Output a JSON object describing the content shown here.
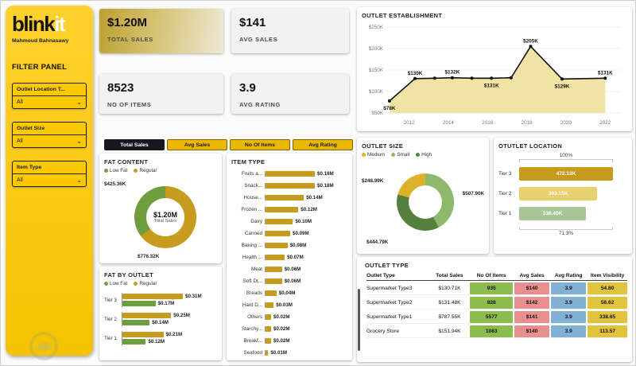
{
  "sidebar": {
    "logo_blink": "blink",
    "logo_it": "it",
    "author": "Mahmoud Bahnasawy",
    "filter_panel_title": "FILTER PANEL",
    "filters": [
      {
        "label": "Outlet Location T...",
        "value": "All"
      },
      {
        "label": "Outlet Size",
        "value": "All"
      },
      {
        "label": "Item Type",
        "value": "All"
      }
    ]
  },
  "kpis": [
    {
      "value": "$1.20M",
      "label": "TOTAL SALES"
    },
    {
      "value": "$141",
      "label": "AVG SALES"
    },
    {
      "value": "8523",
      "label": "NO OF ITEMS"
    },
    {
      "value": "3.9",
      "label": "AVG RATING"
    }
  ],
  "tabs": [
    {
      "label": "Total Sales",
      "active": true
    },
    {
      "label": "Avg Sales",
      "active": false
    },
    {
      "label": "No Of Items",
      "active": false
    },
    {
      "label": "Avg Rating",
      "active": false
    }
  ],
  "colors": {
    "brand_yellow": "#f7c600",
    "accent_gold": "#c79b1e",
    "accent_green": "#6f9e3f",
    "tab_active_bg": "#17171f"
  },
  "chart_data": [
    {
      "id": "outlet_establishment",
      "type": "area",
      "title": "OUTLET ESTABLISHMENT",
      "ylim": [
        50,
        250
      ],
      "yticks": [
        250,
        200,
        150,
        100,
        50
      ],
      "ytick_labels": [
        "$250K",
        "$200K",
        "$150K",
        "$100K",
        "$50K"
      ],
      "xticks": [
        2012,
        2014,
        2016,
        2018,
        2020,
        2022
      ],
      "fill_color": "#f0e0a0",
      "line_color": "#111111",
      "points": [
        {
          "x": 2011.0,
          "y": 78,
          "label": "$78K",
          "label_pos": "below"
        },
        {
          "x": 2012.3,
          "y": 130,
          "label": "$130K",
          "label_pos": "above"
        },
        {
          "x": 2013.3,
          "y": 131,
          "label": null,
          "label_pos": "above"
        },
        {
          "x": 2014.2,
          "y": 132,
          "label": "$132K",
          "label_pos": "above"
        },
        {
          "x": 2015.2,
          "y": 131,
          "label": null,
          "label_pos": "above"
        },
        {
          "x": 2016.2,
          "y": 131,
          "label": "$131K",
          "label_pos": "below"
        },
        {
          "x": 2017.2,
          "y": 132,
          "label": null,
          "label_pos": "above"
        },
        {
          "x": 2018.2,
          "y": 205,
          "label": "$205K",
          "label_pos": "above"
        },
        {
          "x": 2019.8,
          "y": 129,
          "label": "$129K",
          "label_pos": "below"
        },
        {
          "x": 2022.0,
          "y": 131,
          "label": "$131K",
          "label_pos": "above"
        }
      ]
    },
    {
      "id": "fat_content",
      "type": "pie",
      "title": "FAT CONTENT",
      "legend": [
        "Low Fat",
        "Regular"
      ],
      "slices": [
        {
          "name": "Regular",
          "value": 776.32,
          "label": "$776.32K",
          "color": "#c79b1e"
        },
        {
          "name": "Low Fat",
          "value": 425.36,
          "label": "$425.36K",
          "color": "#6f9e3f"
        }
      ],
      "center_value": "$1.20M",
      "center_label": "Total Sales"
    },
    {
      "id": "item_type",
      "type": "bar",
      "title": "ITEM TYPE",
      "bar_color": "#c79b1e",
      "categories": [
        "Fruits a...",
        "Snack...",
        "House...",
        "Frozen ...",
        "Dairy",
        "Canned",
        "Baking ...",
        "Health ...",
        "Meat",
        "Soft Dr...",
        "Breads",
        "Hard D...",
        "Others",
        "Starchy...",
        "Breakf...",
        "Seafood"
      ],
      "values": [
        0.18,
        0.18,
        0.14,
        0.12,
        0.1,
        0.09,
        0.08,
        0.07,
        0.06,
        0.06,
        0.04,
        0.03,
        0.02,
        0.02,
        0.02,
        0.01
      ],
      "labels": [
        "$0.18M",
        "$0.18M",
        "$0.14M",
        "$0.12M",
        "$0.10M",
        "$0.09M",
        "$0.08M",
        "$0.07M",
        "$0.06M",
        "$0.06M",
        "$0.04M",
        "$0.03M",
        "$0.02M",
        "$0.02M",
        "$0.02M",
        "$0.01M"
      ]
    },
    {
      "id": "fat_by_outlet",
      "type": "bar",
      "title": "FAT BY OUTLET",
      "legend": [
        "Low Fat",
        "Regular"
      ],
      "categories": [
        "Tier 3",
        "Tier 2",
        "Tier 1"
      ],
      "series": [
        {
          "name": "Regular",
          "color": "#c79b1e",
          "values": [
            0.31,
            0.25,
            0.21
          ],
          "labels": [
            "$0.31M",
            "$0.25M",
            "$0.21M"
          ]
        },
        {
          "name": "Low Fat",
          "color": "#6f9e3f",
          "values": [
            0.17,
            0.14,
            0.12
          ],
          "labels": [
            "$0.17M",
            "$0.14M",
            "$0.12M"
          ]
        }
      ]
    },
    {
      "id": "outlet_size",
      "type": "pie",
      "title": "OUTLET SIZE",
      "legend": [
        "Medium",
        "Small",
        "High"
      ],
      "slices": [
        {
          "name": "Small",
          "value": 507.9,
          "label": "$507.90K",
          "color": "#8fb96a"
        },
        {
          "name": "High",
          "value": 444.79,
          "label": "$444.79K",
          "color": "#55803c"
        },
        {
          "name": "Medium",
          "value": 248.99,
          "label": "$248.99K",
          "color": "#ddb228"
        }
      ]
    },
    {
      "id": "outlet_location",
      "type": "bar",
      "title": "OTUTLET LOCATION",
      "categories": [
        "Tier 3",
        "Tier 2",
        "Tier 1"
      ],
      "values": [
        472.13,
        393.15,
        336.4
      ],
      "labels": [
        "472.13K",
        "393.15K",
        "336.40K"
      ],
      "bar_colors": [
        "#c79b1e",
        "#e7d06f",
        "#a8c696"
      ],
      "annotations": [
        "100%",
        "71.3%"
      ]
    },
    {
      "id": "outlet_type",
      "type": "table",
      "title": "OUTLET TYPE",
      "columns": [
        "Outlet Type",
        "Total Sales",
        "No Of Items",
        "Avg Sales",
        "Avg Rating",
        "Item Visibility"
      ],
      "cell_colors": {
        "2": "#8cbb4e",
        "3": "#e89090",
        "4": "#82b1d6",
        "5": "#e2c33c"
      },
      "rows": [
        [
          "Supermarket Type3",
          "$130.71K",
          "935",
          "$140",
          "3.9",
          "54.80"
        ],
        [
          "Supermarket Type2",
          "$131.48K",
          "928",
          "$142",
          "3.9",
          "56.62"
        ],
        [
          "Supermarket Type1",
          "$787.55K",
          "5577",
          "$141",
          "3.9",
          "338.65"
        ],
        [
          "Grocery Store",
          "$151.94K",
          "1083",
          "$140",
          "3.9",
          "113.57"
        ]
      ]
    }
  ]
}
